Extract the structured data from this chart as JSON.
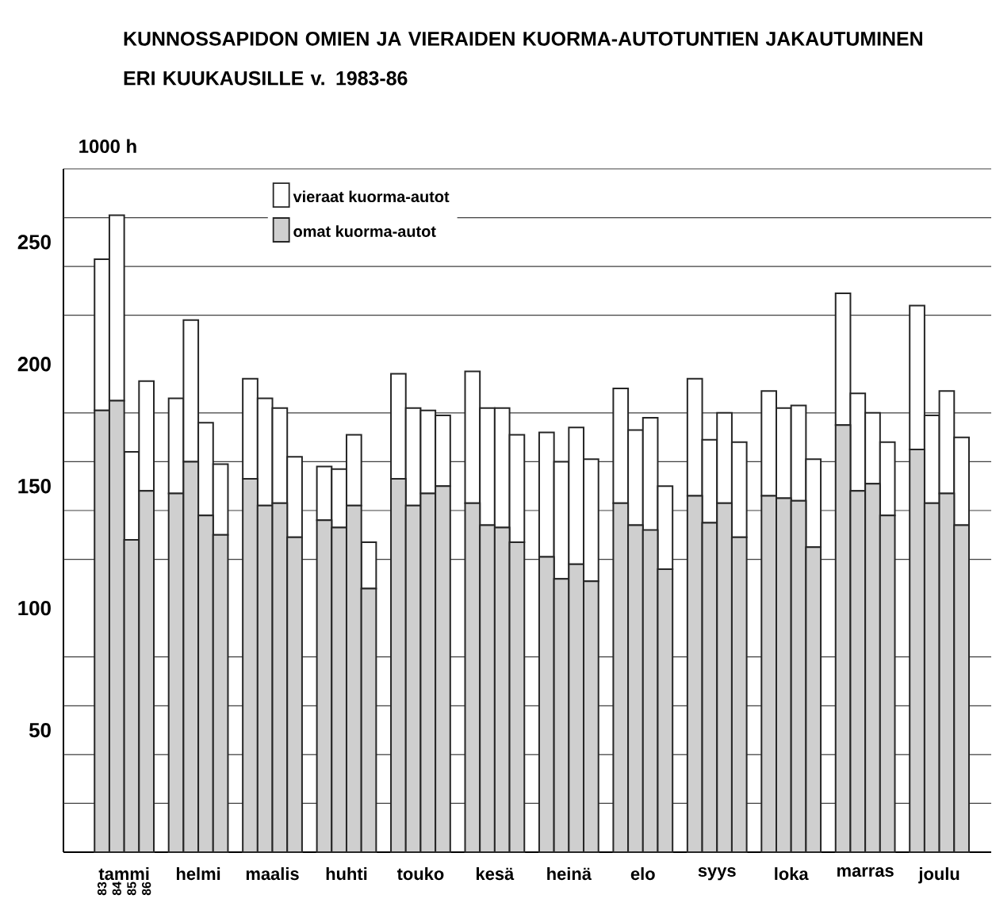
{
  "chart_data": {
    "type": "bar",
    "stacked": true,
    "title": "KUNNOSSAPIDON OMIEN JA VIERAIDEN KUORMA-AUTOTUNTIEN JAKAUTUMINEN ERI KUUKAUSILLE v. 1983-86",
    "ylabel": "1000 h",
    "categories": [
      "83",
      "84",
      "85",
      "86",
      null,
      null,
      null,
      null,
      null,
      null,
      null,
      null,
      null,
      null,
      null,
      null,
      null,
      null,
      null,
      null,
      null,
      null,
      null,
      null,
      null,
      null,
      null,
      null,
      null,
      null,
      null,
      null,
      null,
      null,
      null,
      null,
      null,
      null,
      null,
      null,
      null,
      null,
      null,
      null,
      null,
      null,
      null,
      null,
      null,
      null,
      null,
      null,
      null,
      null,
      null,
      null,
      null,
      null,
      null
    ],
    "annotations": [
      "tammi",
      "helmi",
      "maalis",
      "huhti",
      "touko",
      "kesä",
      "heinä",
      "elo",
      "syys",
      "loka",
      "marras",
      "joulu"
    ],
    "series": [
      {
        "name": "omat kuorma-autot",
        "color": "#cfcfcf",
        "values": [
          181,
          185,
          128,
          148,
          null,
          147,
          160,
          138,
          130,
          null,
          153,
          142,
          143,
          129,
          null,
          136,
          133,
          142,
          108,
          null,
          153,
          142,
          147,
          150,
          null,
          143,
          134,
          133,
          127,
          null,
          121,
          112,
          118,
          111,
          null,
          143,
          134,
          132,
          116,
          null,
          146,
          135,
          143,
          129,
          null,
          146,
          145,
          144,
          125,
          null,
          175,
          148,
          151,
          138,
          null,
          165,
          143,
          147,
          134
        ]
      },
      {
        "name": "vieraat kuorma-autot",
        "color": "#ffffff",
        "values": [
          62,
          76,
          36,
          45,
          null,
          39,
          58,
          38,
          29,
          null,
          41,
          44,
          39,
          33,
          null,
          22,
          24,
          29,
          19,
          null,
          43,
          40,
          34,
          29,
          null,
          54,
          48,
          49,
          44,
          null,
          51,
          48,
          56,
          50,
          null,
          47,
          39,
          46,
          34,
          null,
          48,
          34,
          37,
          39,
          null,
          43,
          37,
          39,
          36,
          null,
          54,
          40,
          29,
          30,
          null,
          59,
          36,
          42,
          36
        ]
      }
    ],
    "ylim": [
      0,
      280
    ],
    "yticks": [
      {
        "value": 20,
        "label": null
      },
      {
        "value": 40,
        "label": null
      },
      50,
      {
        "value": 60,
        "label": null
      },
      {
        "value": 80,
        "label": null
      },
      100,
      {
        "value": 120,
        "label": null
      },
      {
        "value": 140,
        "label": null
      },
      150,
      {
        "value": 160,
        "label": null
      },
      {
        "value": 180,
        "label": null
      },
      200,
      {
        "value": 220,
        "label": null
      },
      {
        "value": 240,
        "label": null
      },
      250,
      {
        "value": 260,
        "label": null
      },
      {
        "value": 280,
        "label": null
      }
    ],
    "grid": "y",
    "legend": "top left"
  }
}
